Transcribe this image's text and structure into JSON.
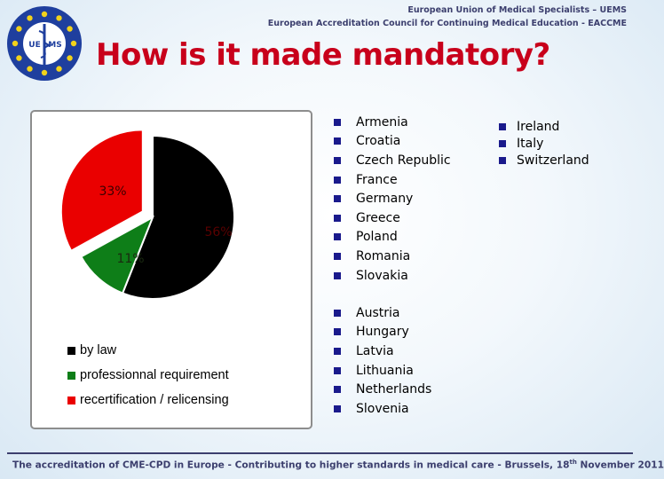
{
  "header": {
    "line1": "European Union of Medical Specialists – UEMS",
    "line2": "European Accreditation Council for Continuing Medical Education - EACCME"
  },
  "logo": {
    "left_text": "UE",
    "right_text": "MS",
    "icon": "uems-logo-icon"
  },
  "title": "How is it made mandatory?",
  "chart_data": {
    "type": "pie",
    "slices": [
      {
        "name": "by law",
        "value": 56,
        "label": "56%",
        "color": "#000000"
      },
      {
        "name": "professionnal requirement",
        "value": 11,
        "label": "11%",
        "color": "#0e7e18"
      },
      {
        "name": "recertification / relicensing",
        "value": 33,
        "label": "33%",
        "color": "#ea0000"
      }
    ],
    "exploded": "recertification / relicensing",
    "legend_position": "bottom-left"
  },
  "lists": {
    "by_law": [
      "Armenia",
      "Croatia",
      "Czech Republic",
      "France",
      "Germany",
      "Greece",
      "Poland",
      "Romania",
      "Slovakia"
    ],
    "professional": [
      "Austria",
      "Hungary",
      "Latvia",
      "Lithuania",
      "Netherlands",
      "Slovenia"
    ],
    "recertification": [
      "Ireland",
      "Italy",
      "Switzerland"
    ]
  },
  "footer": {
    "text": "The accreditation of CME-CPD in Europe - Contributing to higher standards in medical care  - Brussels, 18",
    "sup": "th",
    "tail": " November 2011"
  },
  "colors": {
    "title": "#c8001b",
    "header": "#3c3f6e",
    "bullet": "#1a1a8c"
  }
}
